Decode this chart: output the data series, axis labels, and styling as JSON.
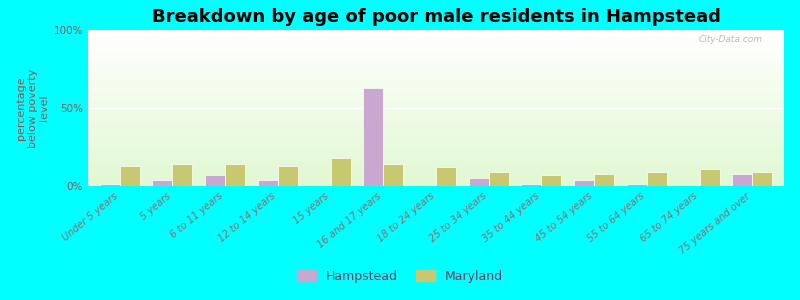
{
  "title": "Breakdown by age of poor male residents in Hampstead",
  "ylabel": "percentage\nbelow poverty\nlevel",
  "categories": [
    "Under 5 years",
    "5 years",
    "6 to 11 years",
    "12 to 14 years",
    "15 years",
    "16 and 17 years",
    "18 to 24 years",
    "25 to 34 years",
    "35 to 44 years",
    "45 to 54 years",
    "55 to 64 years",
    "65 to 74 years",
    "75 years and over"
  ],
  "hampstead_values": [
    1,
    4,
    7,
    4,
    0,
    63,
    0,
    5,
    1,
    4,
    1,
    0,
    8
  ],
  "maryland_values": [
    13,
    14,
    14,
    13,
    18,
    14,
    12,
    9,
    7,
    8,
    9,
    11,
    9
  ],
  "hampstead_color": "#c8a8d0",
  "maryland_color": "#c8c870",
  "outer_background": "#00ffff",
  "ylim": [
    0,
    100
  ],
  "yticks": [
    0,
    50,
    100
  ],
  "ytick_labels": [
    "0%",
    "50%",
    "100%"
  ],
  "title_fontsize": 13,
  "axis_label_fontsize": 8,
  "tick_fontsize": 7.5,
  "legend_labels": [
    "Hampstead",
    "Maryland"
  ],
  "watermark": "City-Data.com",
  "bar_width": 0.38
}
